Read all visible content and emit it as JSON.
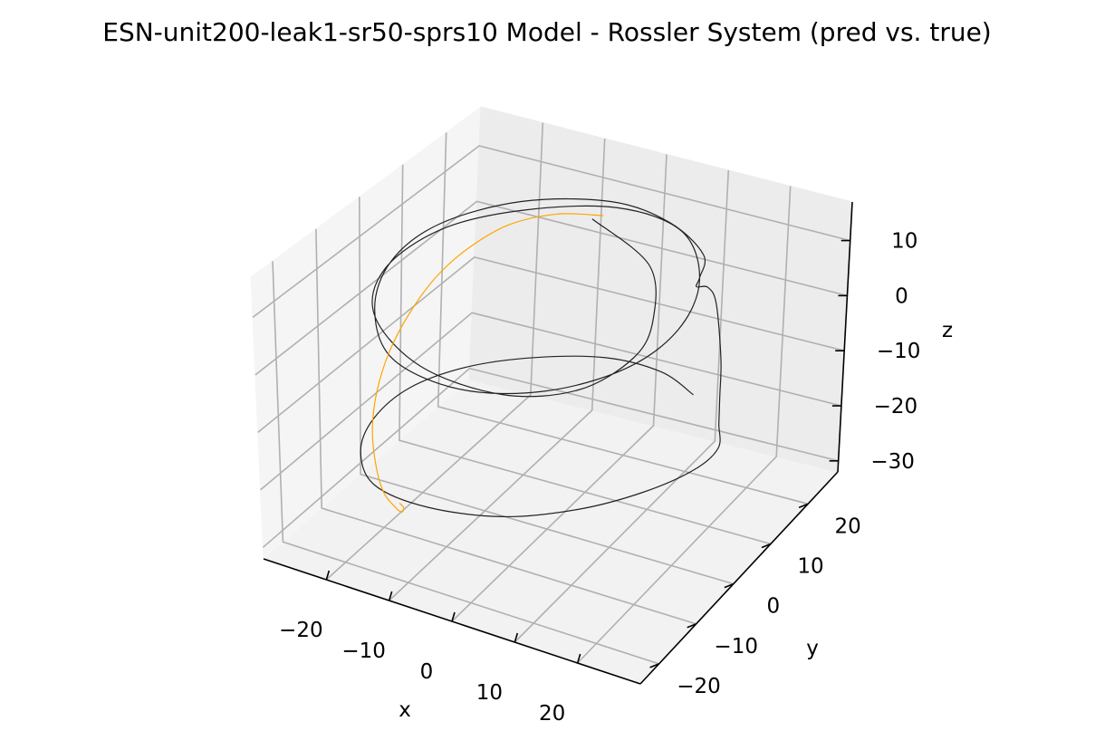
{
  "chart_data": {
    "type": "line",
    "projection": "3d",
    "title": "ESN-unit200-leak1-sr50-sprs10 Model - Rossler System (pred vs. true)",
    "xlabel": "x",
    "ylabel": "y",
    "zlabel": "z",
    "xlim": [
      -30,
      30
    ],
    "ylim": [
      -25,
      28
    ],
    "zlim": [
      -32,
      17
    ],
    "xticks": [
      "−20",
      "−10",
      "0",
      "10",
      "20"
    ],
    "yticks": [
      "−20",
      "−10",
      "0",
      "10",
      "20"
    ],
    "zticks": [
      "−30",
      "−20",
      "−10",
      "0",
      "10"
    ],
    "grid": true,
    "legend": "none",
    "series": [
      {
        "color": "#222222",
        "stroke_width": 1.2,
        "points": [
          [
            -5,
            18,
            10.5
          ],
          [
            8,
            12,
            10.5
          ],
          [
            15,
            2,
            10.3
          ],
          [
            17,
            -6,
            10.0
          ],
          [
            14,
            -15,
            9.5
          ],
          [
            6,
            -21,
            9.5
          ],
          [
            -6,
            -22,
            10.0
          ],
          [
            -17,
            -16,
            10.5
          ],
          [
            -22,
            -6,
            10.8
          ],
          [
            -21,
            6,
            11.0
          ],
          [
            -14,
            15,
            11.2
          ],
          [
            -3,
            21,
            11.2
          ],
          [
            8,
            20,
            11.0
          ],
          [
            16,
            12,
            10.5
          ],
          [
            19,
            2,
            10.0
          ],
          [
            17,
            -8,
            9.5
          ],
          [
            10,
            -17,
            9.0
          ],
          [
            0,
            -22,
            8.5
          ],
          [
            -11,
            -21,
            8.5
          ],
          [
            -19,
            -13,
            9.0
          ],
          [
            -23,
            -3,
            10.0
          ],
          [
            -22,
            7,
            11.0
          ],
          [
            -15,
            16,
            11.8
          ],
          [
            -4,
            21,
            12.0
          ],
          [
            6,
            20,
            12.0
          ],
          [
            14,
            16,
            11.6
          ],
          [
            16,
            12,
            11.0
          ],
          [
            18,
            8,
            13.0
          ],
          [
            21,
            6,
            15.5
          ],
          [
            23,
            5,
            14.0
          ],
          [
            24,
            5,
            4.0
          ],
          [
            24,
            5,
            -3.0
          ],
          [
            24,
            5,
            -8.0
          ],
          [
            24,
            5,
            -12.5
          ],
          [
            22,
            2,
            -15.0
          ],
          [
            18,
            -5,
            -15.5
          ],
          [
            12,
            -12,
            -15.8
          ],
          [
            4,
            -18,
            -16.0
          ],
          [
            -6,
            -21,
            -16.2
          ],
          [
            -15,
            -20,
            -16.4
          ],
          [
            -21,
            -14,
            -16.5
          ],
          [
            -24,
            -6,
            -16.5
          ],
          [
            -24,
            3,
            -16.5
          ],
          [
            -20,
            11,
            -16.4
          ],
          [
            -13,
            17,
            -16.3
          ],
          [
            -4,
            21,
            -16.2
          ],
          [
            5,
            21,
            -16.1
          ],
          [
            12,
            18,
            -16.0
          ]
        ]
      },
      {
        "color": "#ffa500",
        "stroke_width": 1.2,
        "points": [
          [
            -4,
            19,
            10.8
          ],
          [
            -10,
            17,
            10.5
          ],
          [
            -15,
            13,
            9.5
          ],
          [
            -18,
            8,
            7.5
          ],
          [
            -20,
            3,
            4.5
          ],
          [
            -21,
            -2,
            0.5
          ],
          [
            -21.5,
            -6,
            -4.0
          ],
          [
            -21.5,
            -9,
            -9.0
          ],
          [
            -21,
            -11,
            -14.0
          ],
          [
            -20,
            -12,
            -19.0
          ],
          [
            -18.5,
            -12.5,
            -23.5
          ],
          [
            -17,
            -12,
            -26.0
          ],
          [
            -16.2,
            -11.5,
            -27.0
          ],
          [
            -16.2,
            -11,
            -26.5
          ],
          [
            -16.8,
            -11,
            -26.0
          ]
        ]
      }
    ]
  }
}
